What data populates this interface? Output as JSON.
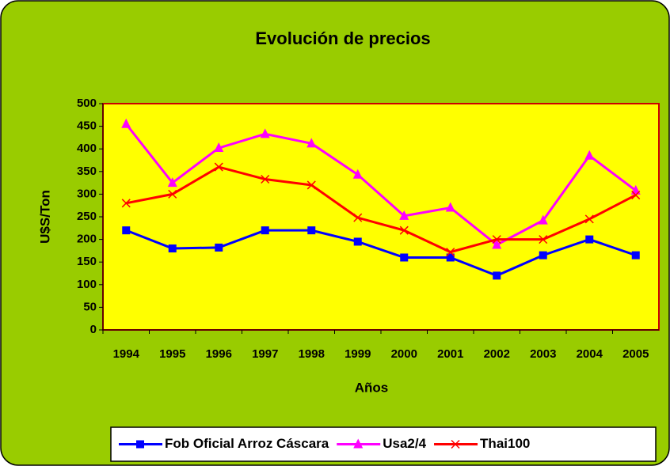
{
  "chart_data": {
    "type": "line",
    "title": "Evolución de precios",
    "x_label": "Años",
    "y_label": "U$S/Ton",
    "categories": [
      "1994",
      "1995",
      "1996",
      "1997",
      "1998",
      "1999",
      "2000",
      "2001",
      "2002",
      "2003",
      "2004",
      "2005"
    ],
    "series": [
      {
        "name": "Fob Oficial Arroz Cáscara",
        "color": "#0000ff",
        "marker": "square",
        "values": [
          220,
          180,
          182,
          220,
          220,
          195,
          160,
          160,
          120,
          165,
          200,
          165
        ]
      },
      {
        "name": "Usa2/4",
        "color": "#ff00ff",
        "marker": "triangle",
        "values": [
          455,
          325,
          402,
          433,
          412,
          343,
          252,
          270,
          188,
          242,
          385,
          308
        ]
      },
      {
        "name": "Thai100",
        "color": "#ff0000",
        "marker": "x",
        "values": [
          280,
          300,
          360,
          333,
          320,
          248,
          220,
          172,
          200,
          200,
          245,
          298
        ]
      }
    ],
    "ylim": [
      0,
      500
    ],
    "yticks": [
      0,
      50,
      100,
      150,
      200,
      250,
      300,
      350,
      400,
      450,
      500
    ],
    "background": "#99cc00",
    "plot_background": "#ffff00",
    "plot_border": "#cc0000",
    "legend": "bottom"
  }
}
